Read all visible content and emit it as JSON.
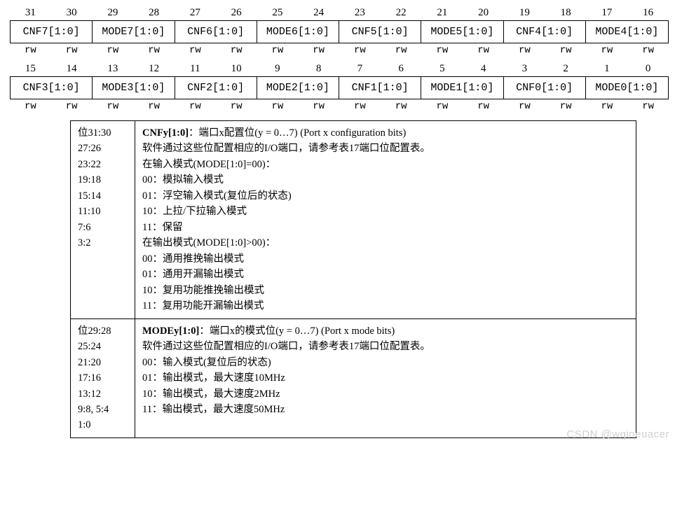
{
  "register_rows": [
    {
      "bits": [
        "31",
        "30",
        "29",
        "28",
        "27",
        "26",
        "25",
        "24",
        "23",
        "22",
        "21",
        "20",
        "19",
        "18",
        "17",
        "16"
      ],
      "fields": [
        "CNF7[1:0]",
        "MODE7[1:0]",
        "CNF6[1:0]",
        "MODE6[1:0]",
        "CNF5[1:0]",
        "MODE5[1:0]",
        "CNF4[1:0]",
        "MODE4[1:0]"
      ],
      "rw": [
        "rw",
        "rw",
        "rw",
        "rw",
        "rw",
        "rw",
        "rw",
        "rw",
        "rw",
        "rw",
        "rw",
        "rw",
        "rw",
        "rw",
        "rw",
        "rw"
      ]
    },
    {
      "bits": [
        "15",
        "14",
        "13",
        "12",
        "11",
        "10",
        "9",
        "8",
        "7",
        "6",
        "5",
        "4",
        "3",
        "2",
        "1",
        "0"
      ],
      "fields": [
        "CNF3[1:0]",
        "MODE3[1:0]",
        "CNF2[1:0]",
        "MODE2[1:0]",
        "CNF1[1:0]",
        "MODE1[1:0]",
        "CNF0[1:0]",
        "MODE0[1:0]"
      ],
      "rw": [
        "rw",
        "rw",
        "rw",
        "rw",
        "rw",
        "rw",
        "rw",
        "rw",
        "rw",
        "rw",
        "rw",
        "rw",
        "rw",
        "rw",
        "rw",
        "rw"
      ]
    }
  ],
  "desc_rows": [
    {
      "bits_lines": [
        "位31:30",
        "27:26",
        "23:22",
        "19:18",
        "15:14",
        "11:10",
        "7:6",
        "3:2"
      ],
      "title_bold": "CNFy[1:0]",
      "title_rest": "：端口x配置位(y = 0…7) (Port x configuration bits)",
      "lines": [
        "软件通过这些位配置相应的I/O端口，请参考表17端口位配置表。",
        "在输入模式(MODE[1:0]=00)：",
        "00：模拟输入模式",
        "01：浮空输入模式(复位后的状态)",
        "10：上拉/下拉输入模式",
        "11：保留",
        "在输出模式(MODE[1:0]>00)：",
        "00：通用推挽输出模式",
        "01：通用开漏输出模式",
        "10：复用功能推挽输出模式",
        "11：复用功能开漏输出模式"
      ]
    },
    {
      "bits_lines": [
        "位29:28",
        "25:24",
        "21:20",
        "17:16",
        "13:12",
        "9:8, 5:4",
        "1:0"
      ],
      "title_bold": "MODEy[1:0]",
      "title_rest": "：端口x的模式位(y = 0…7) (Port x mode bits)",
      "lines": [
        "软件通过这些位配置相应的I/O端口，请参考表17端口位配置表。",
        "00：输入模式(复位后的状态)",
        "01：输出模式，最大速度10MHz",
        "10：输出模式，最大速度2MHz",
        "11：输出模式，最大速度50MHz"
      ]
    }
  ],
  "watermark": "CSDN @wqioeuacer",
  "colors": {
    "border": "#000000",
    "background": "#ffffff",
    "text": "#000000",
    "watermark": "#cfcfcf"
  }
}
